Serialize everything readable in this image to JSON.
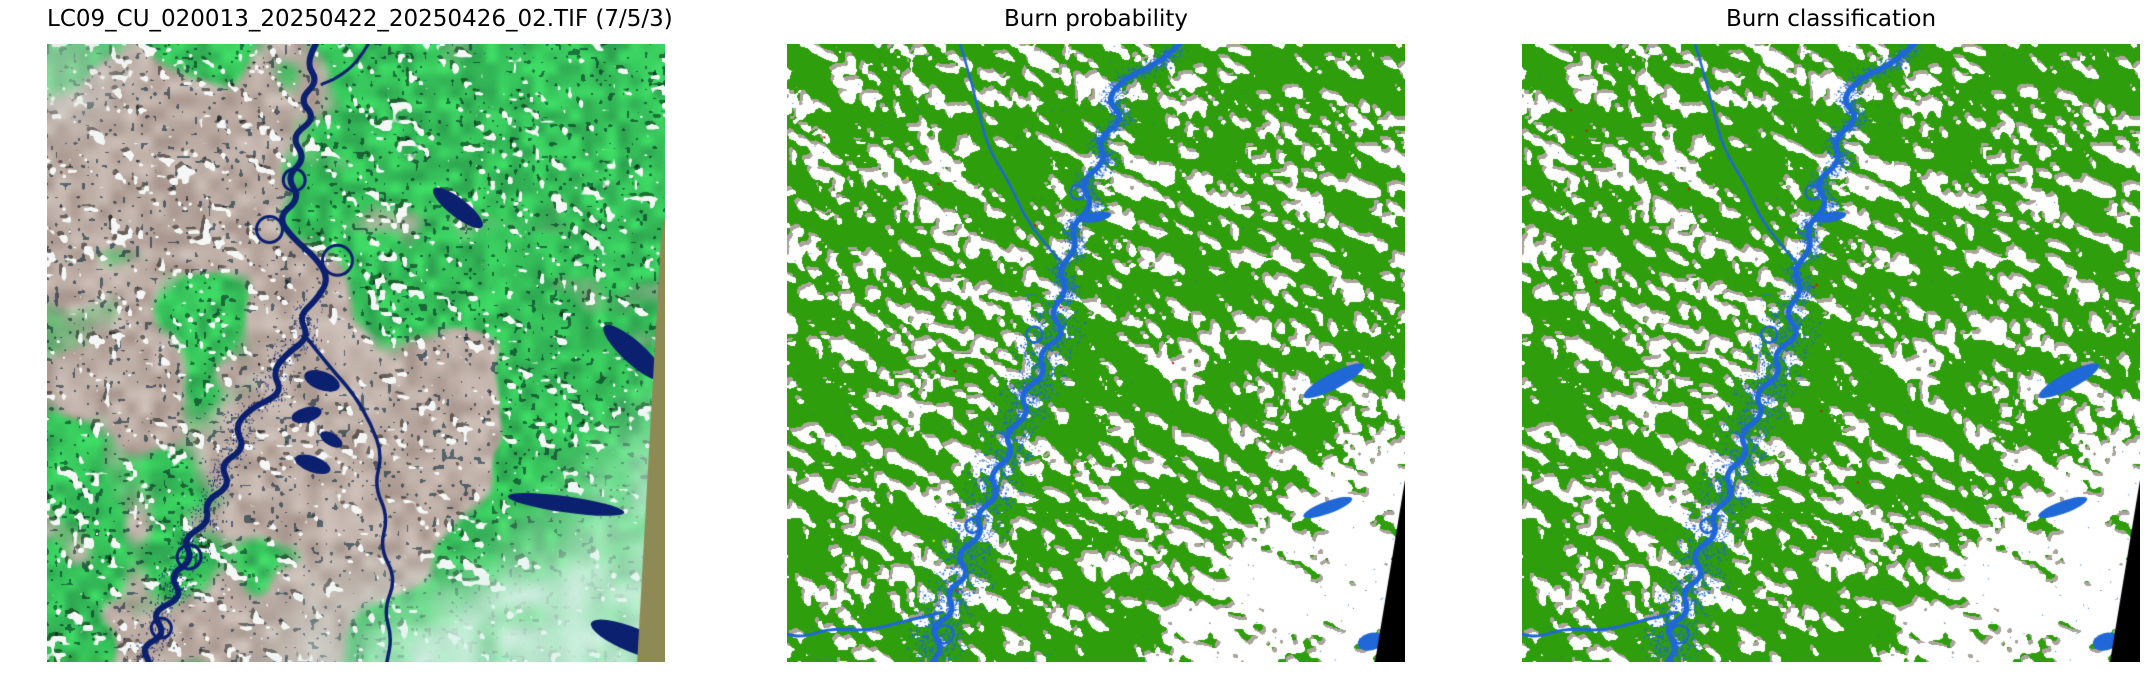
{
  "page": {
    "background": "#ffffff"
  },
  "panels": {
    "satellite": {
      "title": "LC09_CU_020013_20250422_20250426_02.TIF (7/5/3)"
    },
    "probability": {
      "title": "Burn probability"
    },
    "classification": {
      "title": "Burn classification"
    }
  },
  "colors": {
    "title_text": "#000000",
    "class_green": "#2f9e0c",
    "class_blue": "#2067d8",
    "class_gray": "#aaa49c",
    "class_white": "#ffffff",
    "nodata_black": "#000000",
    "speck_red": "#dd1111",
    "speck_yellow": "#e6e600",
    "sat_veg": "#2da24f",
    "sat_veg_bright": "#3fdf66",
    "sat_taupe": "#a8968e",
    "sat_taupe_light": "#cfc2ba",
    "sat_navy": "#0c2070",
    "sat_cloud": "#f4f7f5",
    "sat_haze": "#daf2ea",
    "sat_edge_khaki": "#8e8a56",
    "sat_corner_light": "#d8ded9"
  }
}
